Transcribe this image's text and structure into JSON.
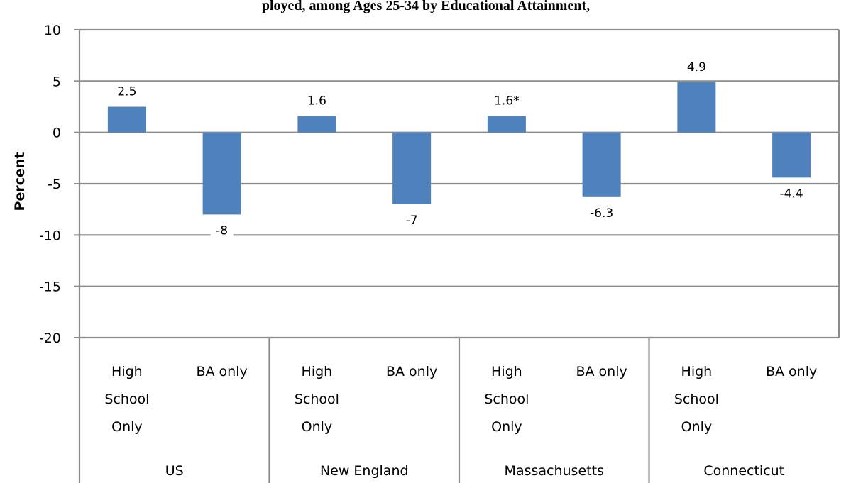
{
  "chart_data": {
    "type": "bar",
    "title": "ployed, among Ages 25-34 by Educational Attainment, ",
    "ylabel": "Percent",
    "ylim": [
      -20,
      10
    ],
    "yticks": [
      10,
      5,
      0,
      -5,
      -10,
      -15,
      -20
    ],
    "grid": true,
    "bar_color": "#4f81bd",
    "groups": [
      {
        "name": "US",
        "bars": [
          {
            "category": "High School Only",
            "category_lines": [
              "High",
              "School",
              "Only"
            ],
            "value": 2.5,
            "label": "2.5"
          },
          {
            "category": "BA only",
            "category_lines": [
              "BA only"
            ],
            "value": -8,
            "label": "-8"
          }
        ]
      },
      {
        "name": "New England",
        "bars": [
          {
            "category": "High School Only",
            "category_lines": [
              "High",
              "School",
              "Only"
            ],
            "value": 1.6,
            "label": "1.6"
          },
          {
            "category": "BA only",
            "category_lines": [
              "BA only"
            ],
            "value": -7,
            "label": "-7"
          }
        ]
      },
      {
        "name": "Massachusetts",
        "bars": [
          {
            "category": "High School Only",
            "category_lines": [
              "High",
              "School",
              "Only"
            ],
            "value": 1.6,
            "label": "1.6*"
          },
          {
            "category": "BA only",
            "category_lines": [
              "BA only"
            ],
            "value": -6.3,
            "label": "-6.3"
          }
        ]
      },
      {
        "name": "Connecticut",
        "bars": [
          {
            "category": "High School Only",
            "category_lines": [
              "High",
              "School",
              "Only"
            ],
            "value": 4.9,
            "label": "4.9"
          },
          {
            "category": "BA only",
            "category_lines": [
              "BA only"
            ],
            "value": -4.4,
            "label": "-4.4"
          }
        ]
      }
    ]
  }
}
